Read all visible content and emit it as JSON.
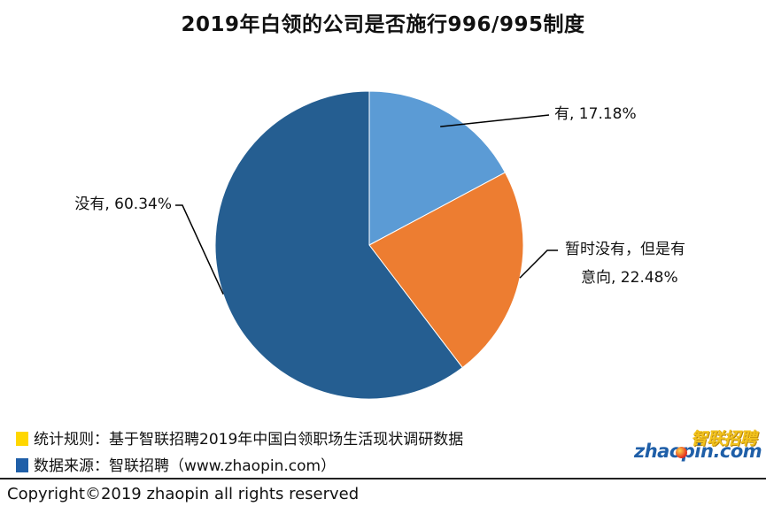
{
  "title": "2019年白领的公司是否施行996/995制度",
  "chart_data": {
    "type": "pie",
    "title": "2019年白领的公司是否施行996/995制度",
    "slices": [
      {
        "label": "有",
        "label_text": "有, 17.18%",
        "value": 17.18,
        "color": "#5b9bd5"
      },
      {
        "label": "暂时没有，但是有意向",
        "label_lines": [
          "暂时没有，但是有",
          "意向, 22.48%"
        ],
        "value": 22.48,
        "color": "#ed7d31"
      },
      {
        "label": "没有",
        "label_text": "没有, 60.34%",
        "value": 60.34,
        "color": "#255e91"
      }
    ],
    "start_angle": "12 o'clock",
    "direction": "clockwise",
    "legend": "none"
  },
  "notes": {
    "rule": {
      "swatch_color": "#ffd700",
      "text": "统计规则：基于智联招聘2019年中国白领职场生活现状调研数据"
    },
    "source": {
      "swatch_color": "#1f5fa8",
      "text": "数据来源：智联招聘（www.zhaopin.com）"
    }
  },
  "logo": {
    "cn": "智联招聘",
    "en": "zhaopin.com",
    "icon": "zhaopin-logo-dot"
  },
  "copyright": "Copyright©2019 zhaopin all rights reserved"
}
